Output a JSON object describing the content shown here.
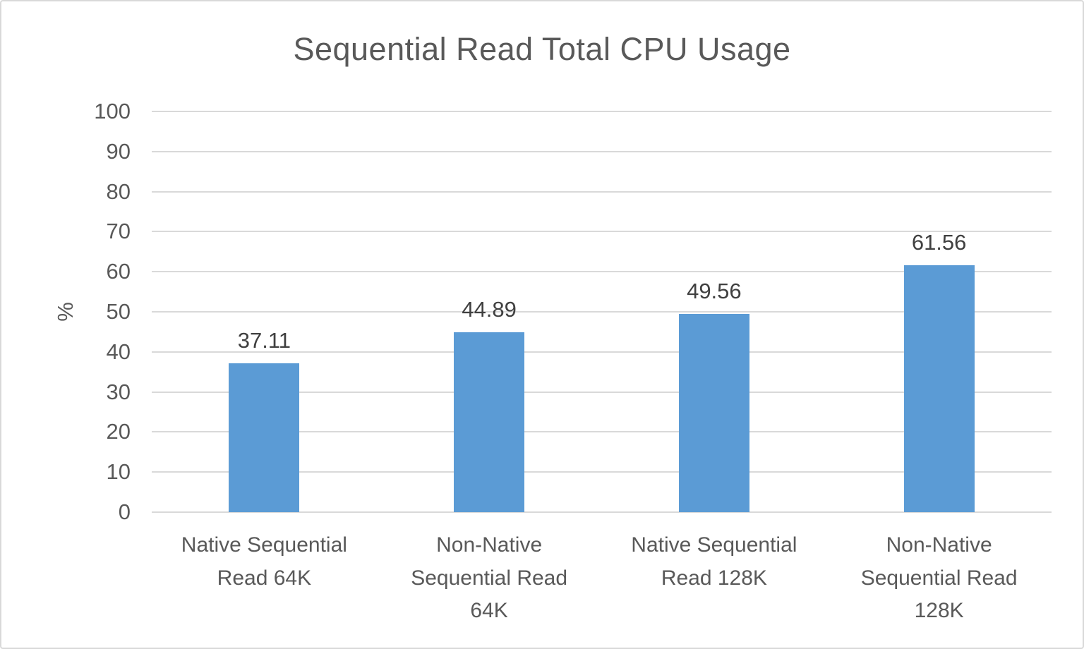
{
  "chart_data": {
    "type": "bar",
    "title": "Sequential Read Total CPU Usage",
    "xlabel": "",
    "ylabel": "%",
    "ylim": [
      0,
      100
    ],
    "ytick_step": 10,
    "grid": true,
    "legend": false,
    "categories": [
      "Native Sequential Read 64K",
      "Non-Native Sequential Read 64K",
      "Native Sequential Read 128K",
      "Non-Native Sequential Read 128K"
    ],
    "category_label_lines": [
      [
        "Native Sequential",
        "Read 64K"
      ],
      [
        "Non-Native",
        "Sequential Read",
        "64K"
      ],
      [
        "Native Sequential",
        "Read 128K"
      ],
      [
        "Non-Native",
        "Sequential Read",
        "128K"
      ]
    ],
    "values": [
      37.11,
      44.89,
      49.56,
      61.56
    ],
    "value_labels": [
      "37.11",
      "44.89",
      "49.56",
      "61.56"
    ],
    "colors": {
      "bar": "#5B9BD5",
      "gridline": "#D9D9D9",
      "frame_border": "#D9D9D9",
      "title_text": "#595959",
      "axis_text": "#595959",
      "value_label_text": "#404040",
      "background": "#FFFFFF"
    }
  }
}
